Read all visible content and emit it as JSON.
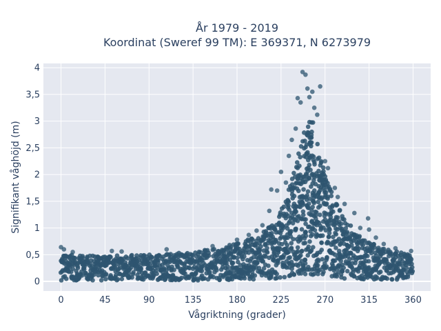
{
  "chart_data": {
    "type": "scatter",
    "title": "År 1979 - 2019",
    "subtitle": "Koordinat (Sweref 99 TM): E 369371, N 6273979",
    "xlabel": "Vågriktning (grader)",
    "ylabel": "Signifikant våghöjd (m)",
    "xlim": [
      -18,
      378
    ],
    "ylim": [
      -0.18,
      4.08
    ],
    "x_ticks": [
      0,
      45,
      90,
      135,
      180,
      225,
      270,
      315,
      360
    ],
    "x_tick_labels": [
      "0",
      "45",
      "90",
      "135",
      "180",
      "225",
      "270",
      "315",
      "360"
    ],
    "y_ticks": [
      0,
      0.5,
      1,
      1.5,
      2,
      2.5,
      3,
      3.5,
      4
    ],
    "y_tick_labels": [
      "0",
      "0,5",
      "1",
      "1,5",
      "2",
      "2,5",
      "3",
      "3,5",
      "4"
    ],
    "grid": true,
    "background": "#e5e8f0",
    "marker_color": "#2e5570",
    "envelope": {
      "x": [
        0,
        20,
        45,
        90,
        135,
        160,
        180,
        200,
        215,
        225,
        235,
        245,
        252,
        258,
        262,
        270,
        280,
        290,
        300,
        315,
        330,
        345,
        360
      ],
      "lower": [
        0.02,
        0.02,
        0.02,
        0.03,
        0.02,
        0.02,
        0.03,
        0.04,
        0.05,
        0.06,
        0.08,
        0.1,
        0.12,
        0.12,
        0.1,
        0.08,
        0.06,
        0.05,
        0.04,
        0.03,
        0.03,
        0.03,
        0.03
      ],
      "upper": [
        0.52,
        0.48,
        0.48,
        0.5,
        0.56,
        0.62,
        0.72,
        0.85,
        1.05,
        1.35,
        1.85,
        2.55,
        3.0,
        3.0,
        2.6,
        2.05,
        1.55,
        1.2,
        0.95,
        0.75,
        0.62,
        0.55,
        0.52
      ]
    },
    "outliers": [
      {
        "x": 0,
        "y": 0.64
      },
      {
        "x": 3,
        "y": 0.6
      },
      {
        "x": 12,
        "y": 0.55
      },
      {
        "x": 52,
        "y": 0.57
      },
      {
        "x": 62,
        "y": 0.56
      },
      {
        "x": 108,
        "y": 0.6
      },
      {
        "x": 155,
        "y": 0.66
      },
      {
        "x": 180,
        "y": 0.78
      },
      {
        "x": 192,
        "y": 0.87
      },
      {
        "x": 200,
        "y": 0.95
      },
      {
        "x": 206,
        "y": 1.05
      },
      {
        "x": 213,
        "y": 1.32
      },
      {
        "x": 215,
        "y": 1.72
      },
      {
        "x": 221,
        "y": 1.7
      },
      {
        "x": 225,
        "y": 2.05
      },
      {
        "x": 230,
        "y": 1.85
      },
      {
        "x": 233,
        "y": 2.35
      },
      {
        "x": 236,
        "y": 2.65
      },
      {
        "x": 240,
        "y": 2.86
      },
      {
        "x": 242,
        "y": 3.43
      },
      {
        "x": 245,
        "y": 3.35
      },
      {
        "x": 247,
        "y": 3.92
      },
      {
        "x": 250,
        "y": 3.87
      },
      {
        "x": 252,
        "y": 3.61
      },
      {
        "x": 254,
        "y": 3.45
      },
      {
        "x": 257,
        "y": 3.55
      },
      {
        "x": 259,
        "y": 3.25
      },
      {
        "x": 262,
        "y": 3.12
      },
      {
        "x": 265,
        "y": 3.65
      },
      {
        "x": 270,
        "y": 2.25
      },
      {
        "x": 273,
        "y": 2.12
      },
      {
        "x": 280,
        "y": 1.75
      },
      {
        "x": 283,
        "y": 1.58
      },
      {
        "x": 290,
        "y": 1.45
      },
      {
        "x": 300,
        "y": 1.28
      },
      {
        "x": 306,
        "y": 1.0
      },
      {
        "x": 314,
        "y": 1.18
      },
      {
        "x": 315,
        "y": 0.97
      },
      {
        "x": 322,
        "y": 0.82
      },
      {
        "x": 330,
        "y": 0.7
      },
      {
        "x": 342,
        "y": 0.62
      },
      {
        "x": 358,
        "y": 0.57
      }
    ]
  }
}
